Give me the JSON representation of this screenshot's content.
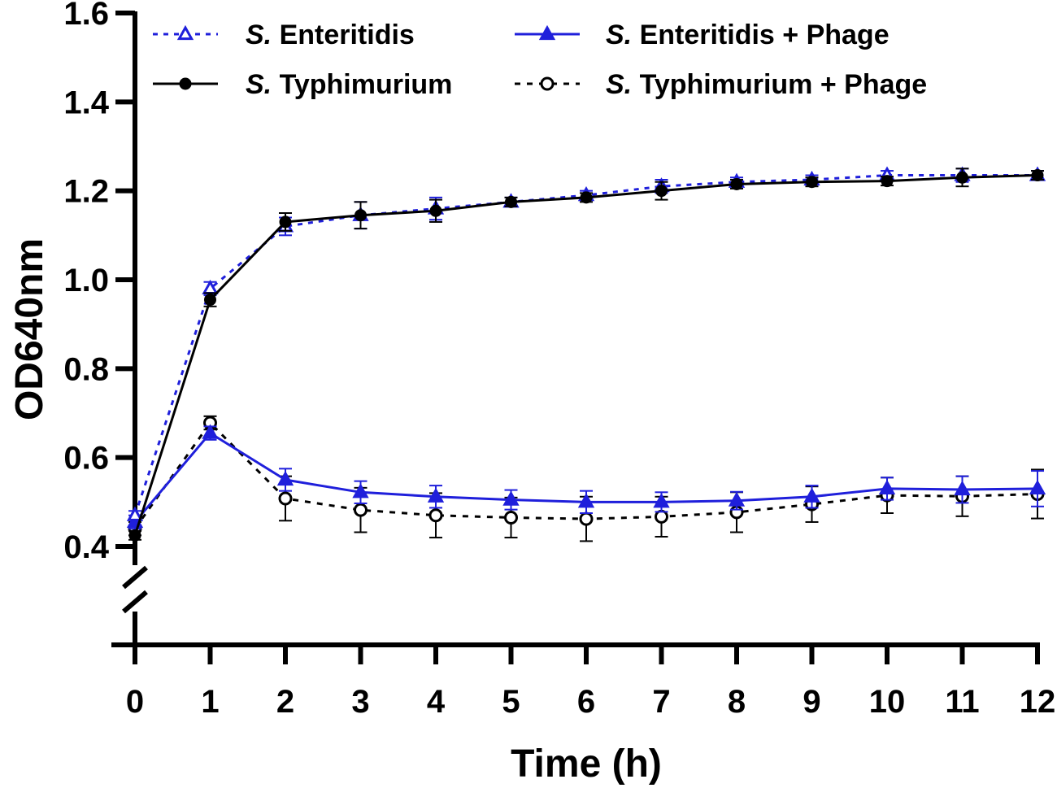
{
  "chart_data": {
    "type": "line",
    "xlabel": "Time (h)",
    "ylabel": "OD640nm",
    "x": [
      0,
      1,
      2,
      3,
      4,
      5,
      6,
      7,
      8,
      9,
      10,
      11,
      12
    ],
    "xlim": [
      0,
      12
    ],
    "ylim": [
      0.4,
      1.6
    ],
    "x_tick_labels": [
      "0",
      "1",
      "2",
      "3",
      "4",
      "5",
      "6",
      "7",
      "8",
      "9",
      "10",
      "11",
      "12"
    ],
    "y_tick_labels": [
      "0.4",
      "0.6",
      "0.8",
      "1.0",
      "1.2",
      "1.4",
      "1.6"
    ],
    "axis_break": "y-axis break below 0.4",
    "grid": false,
    "legend_position": "top",
    "series": [
      {
        "name": "S. Enteritidis",
        "name_italic": "S.",
        "name_rest": "Enteritidis",
        "color": "#1f1fdb",
        "line": "dotted",
        "marker": "triangle-open",
        "values": [
          0.47,
          0.98,
          1.12,
          1.145,
          1.16,
          1.175,
          1.19,
          1.21,
          1.22,
          1.225,
          1.235,
          1.235,
          1.235
        ],
        "error": [
          0.01,
          0.015,
          0.02,
          0.03,
          0.025,
          0.01,
          0.01,
          0.015,
          0.01,
          0.01,
          0.01,
          0.015,
          0.01
        ]
      },
      {
        "name": "S. Typhimurium",
        "name_italic": "S.",
        "name_rest": "Typhimurium",
        "color": "#000000",
        "line": "solid",
        "marker": "circle-filled",
        "values": [
          0.425,
          0.955,
          1.13,
          1.145,
          1.155,
          1.175,
          1.185,
          1.2,
          1.215,
          1.22,
          1.222,
          1.23,
          1.235
        ],
        "error": [
          0.01,
          0.015,
          0.02,
          0.03,
          0.025,
          0.01,
          0.01,
          0.02,
          0.01,
          0.01,
          0.01,
          0.02,
          0.01
        ]
      },
      {
        "name": "S. Enteritidis + Phage",
        "name_italic": "S.",
        "name_rest": "Enteritidis + Phage",
        "color": "#1f1fdb",
        "line": "solid",
        "marker": "triangle-filled",
        "values": [
          0.455,
          0.655,
          0.55,
          0.522,
          0.512,
          0.505,
          0.5,
          0.5,
          0.503,
          0.512,
          0.53,
          0.528,
          0.53
        ],
        "error": [
          0.015,
          0.015,
          0.025,
          0.025,
          0.025,
          0.022,
          0.025,
          0.022,
          0.02,
          0.025,
          0.025,
          0.03,
          0.04
        ]
      },
      {
        "name": "S. Typhimurium + Phage",
        "name_italic": "S.",
        "name_rest": "Typhimurium + Phage",
        "color": "#000000",
        "line": "dashed",
        "marker": "circle-open",
        "values": [
          0.44,
          0.678,
          0.508,
          0.482,
          0.47,
          0.465,
          0.462,
          0.467,
          0.477,
          0.495,
          0.515,
          0.513,
          0.518
        ],
        "error": [
          0.015,
          0.015,
          0.05,
          0.05,
          0.05,
          0.045,
          0.05,
          0.045,
          0.045,
          0.04,
          0.04,
          0.045,
          0.055
        ]
      }
    ]
  }
}
